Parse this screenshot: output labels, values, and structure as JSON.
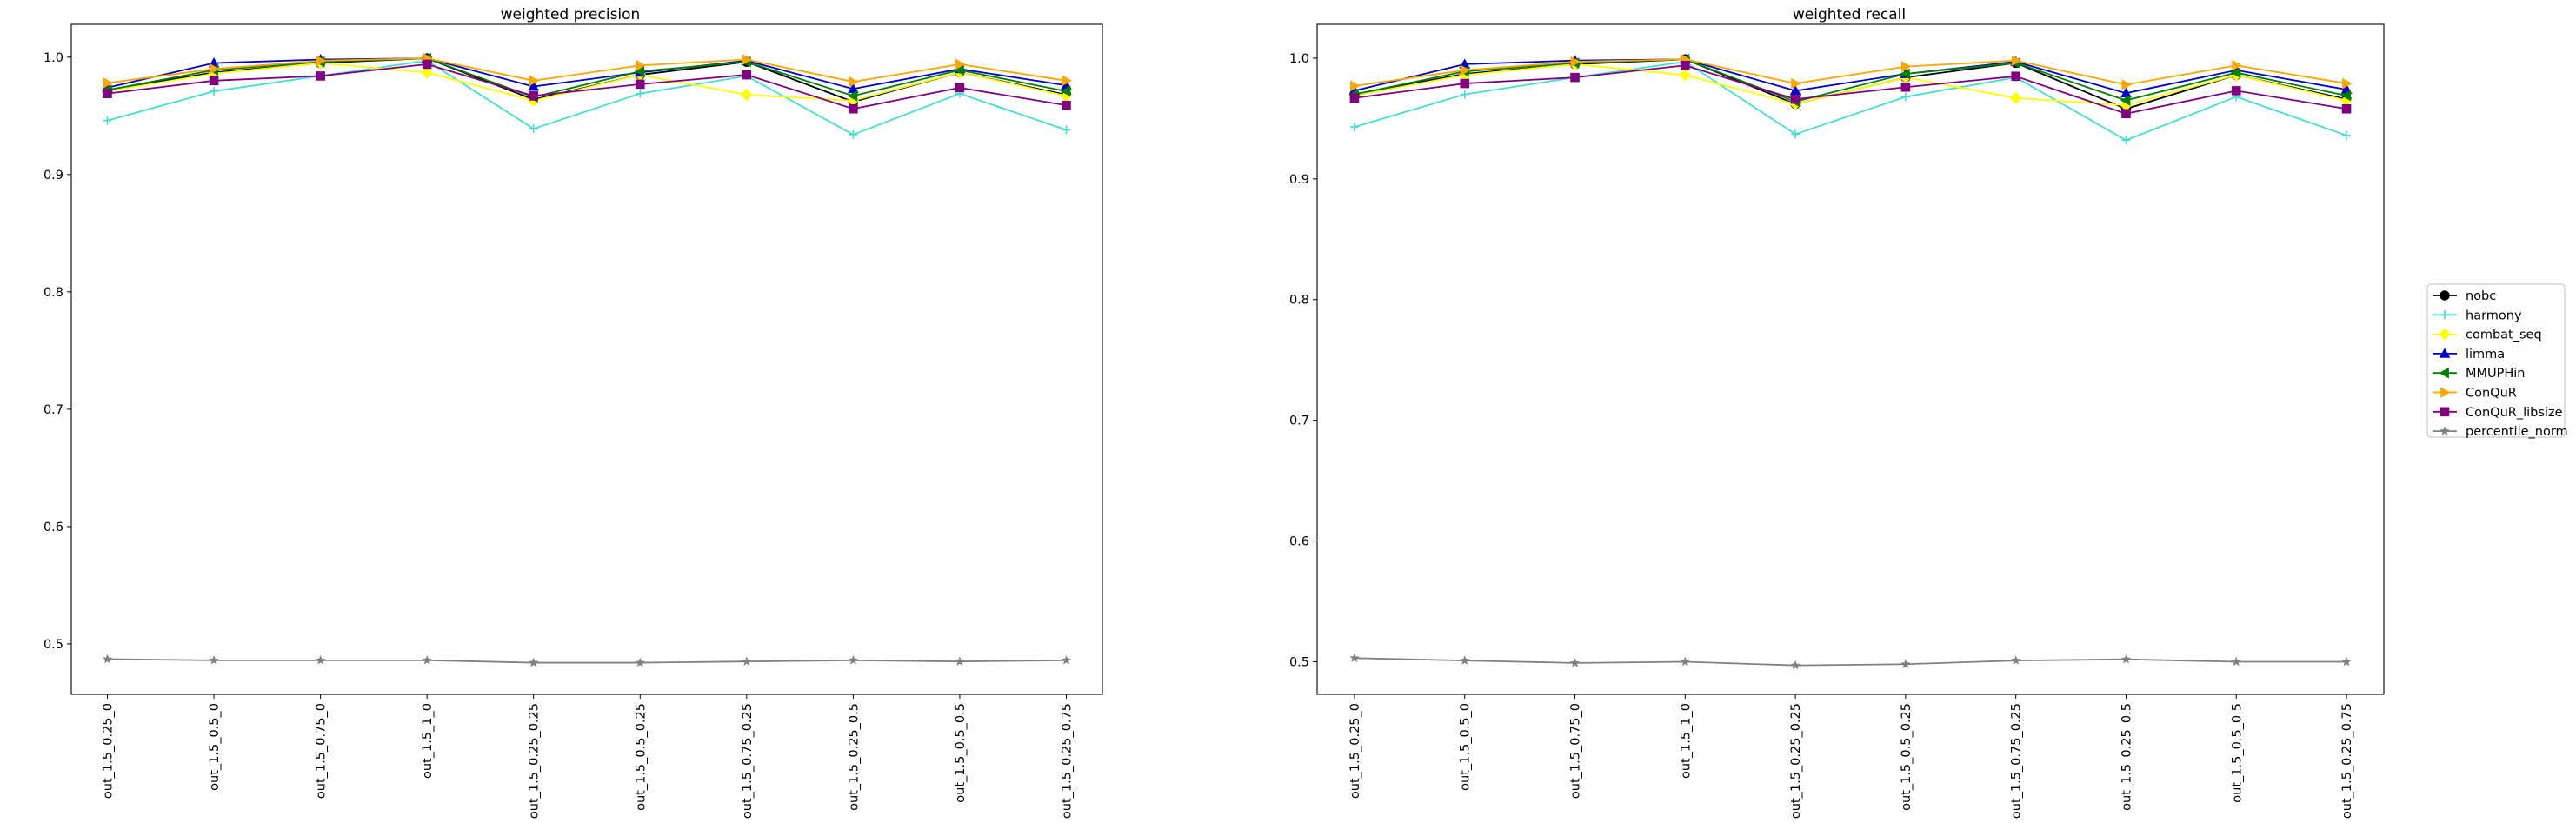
{
  "chart_data": [
    {
      "type": "line",
      "title": "weighted precision",
      "xlabel": "",
      "ylabel": "",
      "categories": [
        "out_1.5_0.25_0",
        "out_1.5_0.5_0",
        "out_1.5_0.75_0",
        "out_1.5_1_0",
        "out_1.5_0.25_0.25",
        "out_1.5_0.5_0.25",
        "out_1.5_0.75_0.25",
        "out_1.5_0.25_0.5",
        "out_1.5_0.5_0.5",
        "out_1.5_0.25_0.75"
      ],
      "ylim": [
        0.457,
        1.028
      ],
      "yticks": [
        0.5,
        0.6,
        0.7,
        0.8,
        0.9,
        1.0
      ],
      "ytick_labels": [
        "0.5",
        "0.6",
        "0.7",
        "0.8",
        "0.9",
        "1.0"
      ],
      "grid": false,
      "series": [
        {
          "name": "nobc",
          "color": "#000000",
          "marker": "circle",
          "values": [
            0.972,
            0.987,
            0.995,
            0.999,
            0.964,
            0.985,
            0.996,
            0.962,
            0.987,
            0.968
          ]
        },
        {
          "name": "harmony",
          "color": "#40e0d0",
          "marker": "plus",
          "values": [
            0.946,
            0.971,
            0.984,
            0.997,
            0.939,
            0.969,
            0.984,
            0.934,
            0.969,
            0.938
          ]
        },
        {
          "name": "combat_seq",
          "color": "#ffff00",
          "marker": "diamond",
          "values": [
            0.971,
            0.986,
            0.995,
            0.987,
            0.963,
            0.985,
            0.968,
            0.963,
            0.987,
            0.967
          ]
        },
        {
          "name": "limma",
          "color": "#0000cd",
          "marker": "triangle-up",
          "values": [
            0.974,
            0.995,
            0.998,
            0.999,
            0.975,
            0.987,
            0.997,
            0.973,
            0.99,
            0.976
          ]
        },
        {
          "name": "MMUPHin",
          "color": "#008000",
          "marker": "triangle-left",
          "values": [
            0.972,
            0.989,
            0.996,
            0.999,
            0.966,
            0.988,
            0.996,
            0.967,
            0.989,
            0.971
          ]
        },
        {
          "name": "ConQuR",
          "color": "#ffa500",
          "marker": "triangle-right",
          "values": [
            0.978,
            0.99,
            0.997,
            0.999,
            0.98,
            0.993,
            0.998,
            0.979,
            0.994,
            0.98
          ]
        },
        {
          "name": "ConQuR_libsize",
          "color": "#800080",
          "marker": "square",
          "values": [
            0.969,
            0.98,
            0.984,
            0.994,
            0.967,
            0.977,
            0.985,
            0.956,
            0.974,
            0.959
          ]
        },
        {
          "name": "percentile_norm",
          "color": "#808080",
          "marker": "star",
          "values": [
            0.487,
            0.486,
            0.486,
            0.486,
            0.484,
            0.484,
            0.485,
            0.486,
            0.485,
            0.486
          ]
        }
      ]
    },
    {
      "type": "line",
      "title": "weighted recall",
      "xlabel": "",
      "ylabel": "",
      "categories": [
        "out_1.5_0.25_0",
        "out_1.5_0.5_0",
        "out_1.5_0.75_0",
        "out_1.5_1_0",
        "out_1.5_0.25_0.25",
        "out_1.5_0.5_0.25",
        "out_1.5_0.75_0.25",
        "out_1.5_0.25_0.5",
        "out_1.5_0.5_0.5",
        "out_1.5_0.25_0.75"
      ],
      "ylim": [
        0.473,
        1.028
      ],
      "yticks": [
        0.5,
        0.6,
        0.7,
        0.8,
        0.9,
        1.0
      ],
      "ytick_labels": [
        "0.5",
        "0.6",
        "0.7",
        "0.8",
        "0.9",
        "1.0"
      ],
      "grid": false,
      "series": [
        {
          "name": "nobc",
          "color": "#000000",
          "marker": "circle",
          "values": [
            0.97,
            0.987,
            0.995,
            0.999,
            0.962,
            0.984,
            0.996,
            0.958,
            0.986,
            0.966
          ]
        },
        {
          "name": "harmony",
          "color": "#40e0d0",
          "marker": "plus",
          "values": [
            0.943,
            0.97,
            0.984,
            0.997,
            0.937,
            0.968,
            0.984,
            0.932,
            0.968,
            0.936
          ]
        },
        {
          "name": "combat_seq",
          "color": "#ffff00",
          "marker": "diamond",
          "values": [
            0.969,
            0.986,
            0.995,
            0.986,
            0.962,
            0.984,
            0.967,
            0.961,
            0.986,
            0.965
          ]
        },
        {
          "name": "limma",
          "color": "#0000cd",
          "marker": "triangle-up",
          "values": [
            0.973,
            0.995,
            0.998,
            0.999,
            0.973,
            0.987,
            0.997,
            0.971,
            0.99,
            0.974
          ]
        },
        {
          "name": "MMUPHin",
          "color": "#008000",
          "marker": "triangle-left",
          "values": [
            0.97,
            0.989,
            0.996,
            0.999,
            0.964,
            0.987,
            0.996,
            0.965,
            0.988,
            0.969
          ]
        },
        {
          "name": "ConQuR",
          "color": "#ffa500",
          "marker": "triangle-right",
          "values": [
            0.977,
            0.99,
            0.997,
            0.999,
            0.979,
            0.993,
            0.998,
            0.978,
            0.994,
            0.979
          ]
        },
        {
          "name": "ConQuR_libsize",
          "color": "#800080",
          "marker": "square",
          "values": [
            0.967,
            0.979,
            0.984,
            0.994,
            0.966,
            0.976,
            0.985,
            0.954,
            0.973,
            0.958
          ]
        },
        {
          "name": "percentile_norm",
          "color": "#808080",
          "marker": "star",
          "values": [
            0.503,
            0.501,
            0.499,
            0.5,
            0.497,
            0.498,
            0.501,
            0.502,
            0.5,
            0.5
          ]
        }
      ]
    }
  ],
  "legend": {
    "placement": "right",
    "entries": [
      "nobc",
      "harmony",
      "combat_seq",
      "limma",
      "MMUPHin",
      "ConQuR",
      "ConQuR_libsize",
      "percentile_norm"
    ]
  }
}
